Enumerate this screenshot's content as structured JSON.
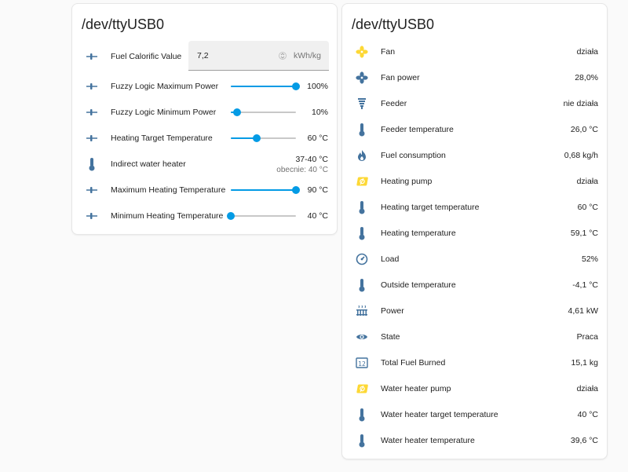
{
  "left_card": {
    "title": "/dev/ttyUSB0",
    "fuel_calorific": {
      "label": "Fuel Calorific Value",
      "value": "7,2",
      "unit": "kWh/kg"
    },
    "sliders": [
      {
        "label": "Fuzzy Logic Maximum Power",
        "value": "100%",
        "position": 1.0
      },
      {
        "label": "Fuzzy Logic Minimum Power",
        "value": "10%",
        "position": 0.1
      },
      {
        "label": "Heating Target Temperature",
        "value": "60 °C",
        "position": 0.4
      }
    ],
    "indirect_water_heater": {
      "label": "Indirect water heater",
      "value": "37-40 °C",
      "current": "obecnie: 40 °C"
    },
    "sliders2": [
      {
        "label": "Maximum Heating Temperature",
        "value": "90 °C",
        "position": 1.0
      },
      {
        "label": "Minimum Heating Temperature",
        "value": "40 °C",
        "position": 0.0
      }
    ]
  },
  "right_card": {
    "title": "/dev/ttyUSB0",
    "entities": [
      {
        "icon": "fan-icon",
        "label": "Fan",
        "value": "działa"
      },
      {
        "icon": "fan-power-icon",
        "label": "Fan power",
        "value": "28,0%"
      },
      {
        "icon": "feeder-icon",
        "label": "Feeder",
        "value": "nie działa"
      },
      {
        "icon": "thermometer-icon",
        "label": "Feeder temperature",
        "value": "26,0 °C"
      },
      {
        "icon": "fire-icon",
        "label": "Fuel consumption",
        "value": "0,68 kg/h"
      },
      {
        "icon": "pump-icon",
        "label": "Heating pump",
        "value": "działa"
      },
      {
        "icon": "thermometer-icon",
        "label": "Heating target temperature",
        "value": "60 °C"
      },
      {
        "icon": "thermometer-icon",
        "label": "Heating temperature",
        "value": "59,1 °C"
      },
      {
        "icon": "gauge-icon",
        "label": "Load",
        "value": "52%"
      },
      {
        "icon": "thermometer-icon",
        "label": "Outside temperature",
        "value": "-4,1 °C"
      },
      {
        "icon": "radiator-icon",
        "label": "Power",
        "value": "4,61 kW"
      },
      {
        "icon": "eye-icon",
        "label": "State",
        "value": "Praca"
      },
      {
        "icon": "counter-icon",
        "label": "Total Fuel Burned",
        "value": "15,1 kg"
      },
      {
        "icon": "pump-icon",
        "label": "Water heater pump",
        "value": "działa"
      },
      {
        "icon": "thermometer-icon",
        "label": "Water heater target temperature",
        "value": "40 °C"
      },
      {
        "icon": "thermometer-icon",
        "label": "Water heater temperature",
        "value": "39,6 °C"
      }
    ]
  },
  "colors": {
    "accent": "#039be5",
    "icon": "#44739e",
    "icon_yellow": "#fdd835"
  }
}
